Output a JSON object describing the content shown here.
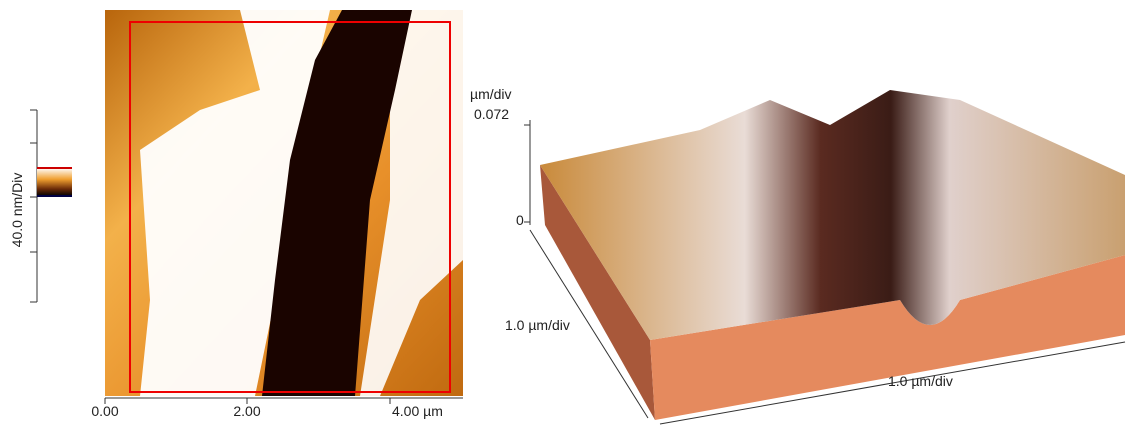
{
  "height_image": {
    "scale_label": "40.0 nm/Div",
    "x_tick_labels": [
      "0.00",
      "2.00",
      "4.00 µm"
    ]
  },
  "surface_3d": {
    "z_unit": "µm/div",
    "z_max": "0.072",
    "z_min": "0",
    "y_axis_label": "1.0 µm/div",
    "x_axis_label": "1.0 µm/div"
  }
}
